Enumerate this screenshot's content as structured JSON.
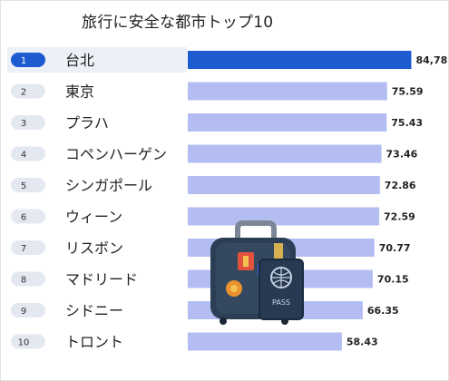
{
  "chart_data": {
    "type": "bar",
    "orientation": "horizontal",
    "title": "旅行に安全な都市トップ10",
    "ranks": [
      "1",
      "2",
      "3",
      "4",
      "5",
      "6",
      "7",
      "8",
      "9",
      "10"
    ],
    "categories": [
      "台北",
      "東京",
      "プラハ",
      "コペンハーゲン",
      "シンガポール",
      "ウィーン",
      "リスボン",
      "マドリード",
      "シドニー",
      "トロント"
    ],
    "values": [
      84.78,
      75.59,
      75.43,
      73.46,
      72.86,
      72.59,
      70.77,
      70.15,
      66.35,
      58.43
    ],
    "value_labels": [
      "84,78",
      "75.59",
      "75.43",
      "73.46",
      "72.86",
      "72.59",
      "70.77",
      "70.15",
      "66.35",
      "58.43"
    ],
    "xlim": [
      0,
      86
    ],
    "grid": false,
    "highlight_index": 0,
    "colors": {
      "highlight_bar": "#1c5bd0",
      "bar": "#b4bdf2",
      "highlight_row": "#edf0f6",
      "pill": "#e4e8f1",
      "pill_highlight": "#1c5bd0"
    },
    "illustration": "suitcase-and-passport-icon"
  }
}
